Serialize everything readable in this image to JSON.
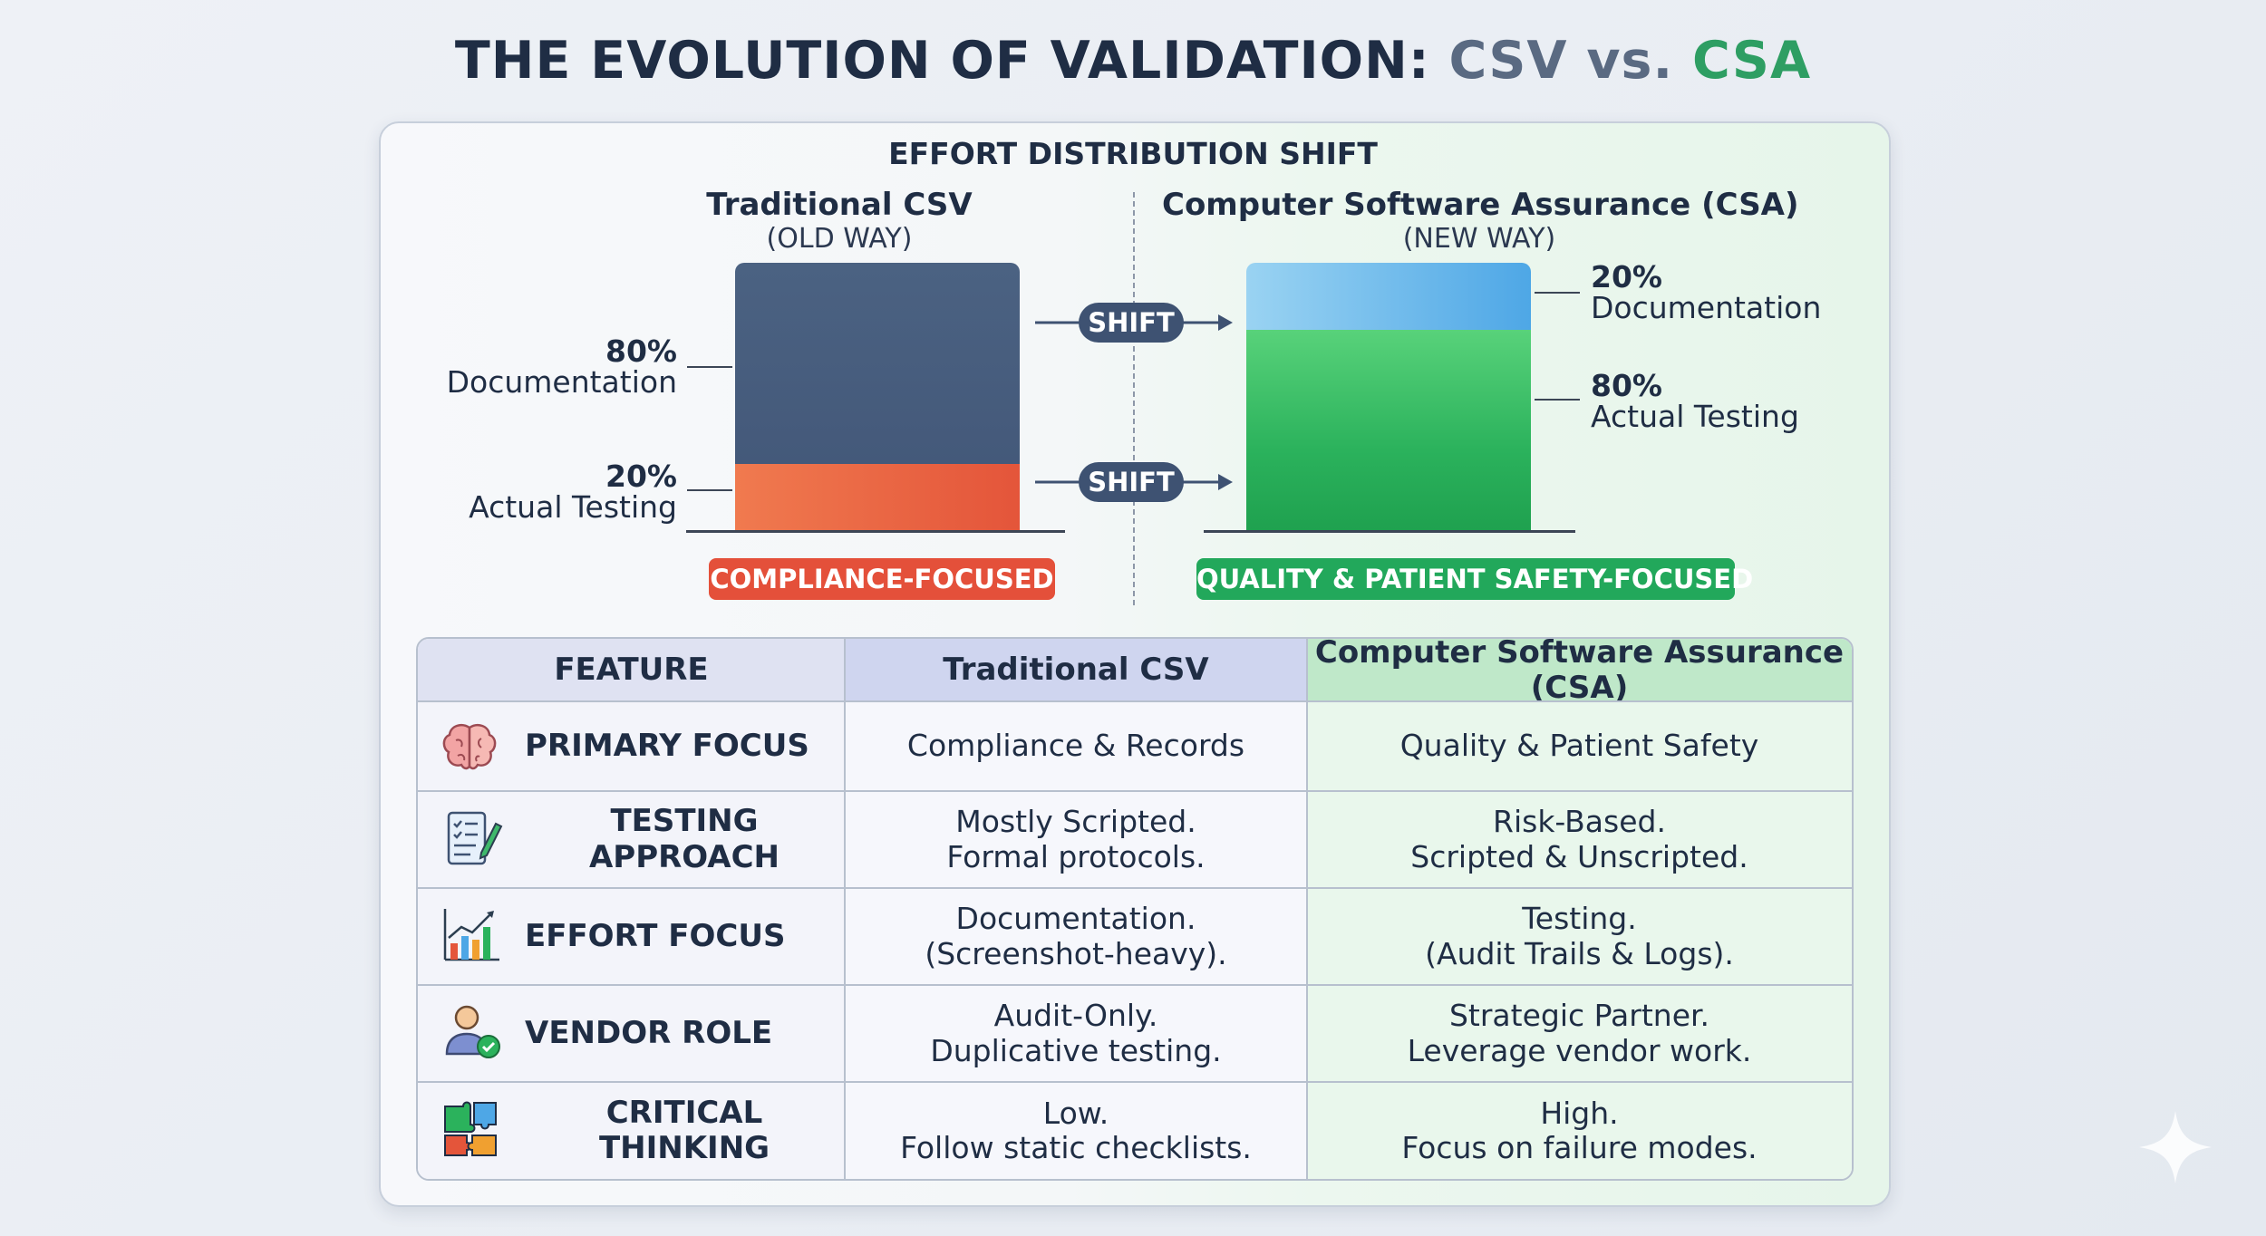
{
  "title": {
    "prefix": "THE EVOLUTION OF VALIDATION:",
    "csv": "CSV",
    "vs": "vs.",
    "csa": "CSA"
  },
  "effort": {
    "heading": "EFFORT DISTRIBUTION SHIFT",
    "old": {
      "name": "Traditional CSV",
      "sub": "(OLD WAY)",
      "documentation_pct": "80%",
      "documentation_label": "Documentation",
      "testing_pct": "20%",
      "testing_label": "Actual Testing",
      "documentation_share": 80,
      "testing_share": 20,
      "tag": "COMPLIANCE-FOCUSED"
    },
    "new": {
      "name": "Computer Software Assurance (CSA)",
      "sub": "(NEW WAY)",
      "documentation_pct": "20%",
      "documentation_label": "Documentation",
      "testing_pct": "80%",
      "testing_label": "Actual Testing",
      "documentation_share": 20,
      "testing_share": 80,
      "tag": "QUALITY & PATIENT SAFETY-FOCUSED"
    },
    "shift_label": "SHIFT",
    "colors": {
      "csv_documentation": "#44597a",
      "csv_testing": "#e4553a",
      "csa_documentation": "#4ea7e6",
      "csa_testing": "#2bb25c"
    }
  },
  "table": {
    "headers": [
      "FEATURE",
      "Traditional CSV",
      "Computer Software Assurance (CSA)"
    ],
    "rows": [
      {
        "icon": "brain-icon",
        "feature": "PRIMARY FOCUS",
        "csv": [
          "Compliance & Records"
        ],
        "csa": [
          "Quality & Patient Safety"
        ]
      },
      {
        "icon": "checklist-pencil-icon",
        "feature": "TESTING APPROACH",
        "csv": [
          "Mostly Scripted.",
          "Formal protocols."
        ],
        "csa": [
          "Risk-Based.",
          "Scripted & Unscripted."
        ]
      },
      {
        "icon": "growth-chart-icon",
        "feature": "EFFORT FOCUS",
        "csv": [
          "Documentation.",
          "(Screenshot-heavy)."
        ],
        "csa": [
          "Testing.",
          "(Audit Trails & Logs)."
        ]
      },
      {
        "icon": "user-check-icon",
        "feature": "VENDOR ROLE",
        "csv": [
          "Audit-Only.",
          "Duplicative testing."
        ],
        "csa": [
          "Strategic Partner.",
          "Leverage vendor work."
        ]
      },
      {
        "icon": "puzzle-icon",
        "feature": "CRITICAL THINKING",
        "csv": [
          "Low.",
          "Follow static checklists."
        ],
        "csa": [
          "High.",
          "Focus on failure modes."
        ]
      }
    ]
  }
}
